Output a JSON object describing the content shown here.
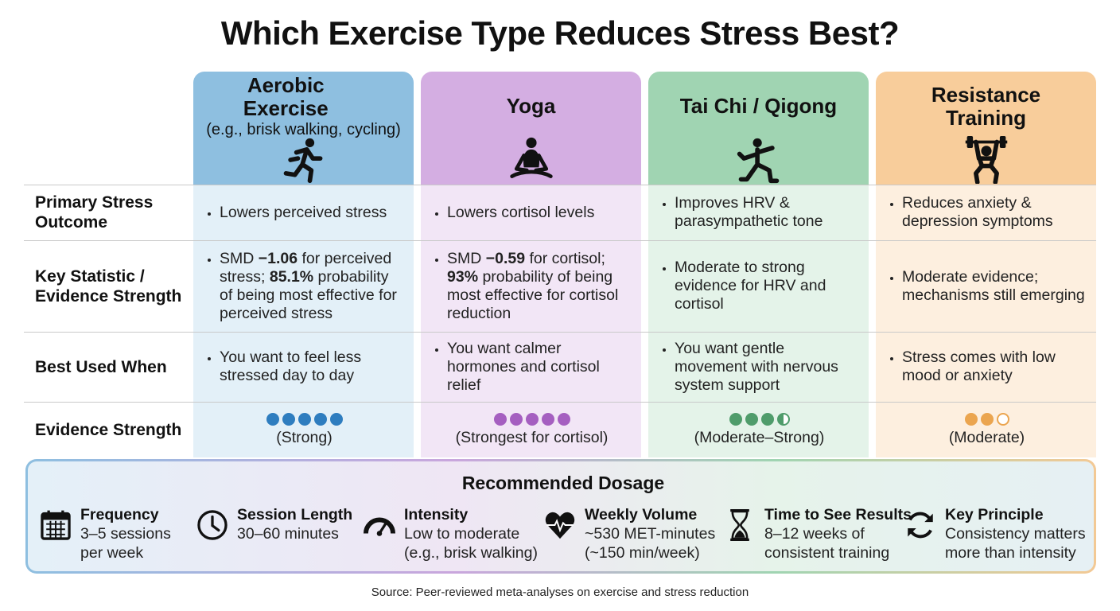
{
  "title": "Which Exercise Type Reduces Stress Best?",
  "row_labels": [
    "Primary Stress Outcome",
    "Key Statistic / Evidence Strength",
    "Best Used When",
    "Evidence Strength"
  ],
  "columns": [
    {
      "name": "Aerobic Exercise",
      "subtitle": "(e.g., brisk walking, cycling)",
      "color": "#8ebfe0",
      "tint": "#e3f0f8",
      "dot_color": "#2e7dbf",
      "outcome": "Lowers perceived stress",
      "statistic": [
        "SMD ",
        "−1.06",
        " for perceived stress; ",
        "85.1%",
        " probability of being most effective for perceived stress"
      ],
      "best_used": "You want to feel less stressed day to day",
      "dots": [
        1,
        1,
        1,
        1,
        1
      ],
      "rating": "(Strong)"
    },
    {
      "name": "Yoga",
      "color": "#d4aee2",
      "tint": "#f2e6f6",
      "dot_color": "#a55fc0",
      "outcome": "Lowers cortisol levels",
      "statistic": [
        "SMD ",
        "−0.59",
        " for cortisol; ",
        "93%",
        " probability of being most effective for cortisol reduction"
      ],
      "best_used": "You want calmer hormones and cortisol relief",
      "dots": [
        1,
        1,
        1,
        1,
        1
      ],
      "rating": "(Strongest for cortisol)"
    },
    {
      "name": "Tai Chi / Qigong",
      "color": "#a0d4b2",
      "tint": "#e4f3e9",
      "dot_color": "#4f9c6b",
      "outcome": "Improves HRV & parasympathetic tone",
      "statistic": [
        "Moderate to strong evidence for HRV and cortisol"
      ],
      "best_used": "You want gentle movement with nervous system support",
      "dots": [
        1,
        1,
        1,
        0.5
      ],
      "rating": "(Moderate–Strong)"
    },
    {
      "name": "Resistance Training",
      "color": "#f8cd9b",
      "tint": "#fdefdf",
      "dot_color": "#eba54f",
      "outcome": "Reduces anxiety & depression symptoms",
      "statistic": [
        "Moderate evidence; mechanisms still emerging"
      ],
      "best_used": "Stress comes with low mood or anxiety",
      "dots": [
        1,
        1,
        0
      ],
      "rating": "(Moderate)"
    }
  ],
  "dosage": {
    "title": "Recommended Dosage",
    "items": [
      {
        "label": "Frequency",
        "lines": [
          "3–5 sessions",
          "per week"
        ]
      },
      {
        "label": "Session Length",
        "lines": [
          "30–60 minutes"
        ]
      },
      {
        "label": "Intensity",
        "lines": [
          "Low to moderate",
          "(e.g., brisk walking)"
        ]
      },
      {
        "label": "Weekly Volume",
        "lines": [
          "~530 MET-minutes",
          "(~150 min/week)"
        ]
      },
      {
        "label": "Time to See Results",
        "lines": [
          "8–12 weeks of",
          "consistent training"
        ]
      },
      {
        "label": "Key Principle",
        "lines": [
          "Consistency matters",
          "more than intensity"
        ]
      }
    ]
  },
  "source": "Source: Peer-reviewed meta-analyses on exercise and stress reduction"
}
